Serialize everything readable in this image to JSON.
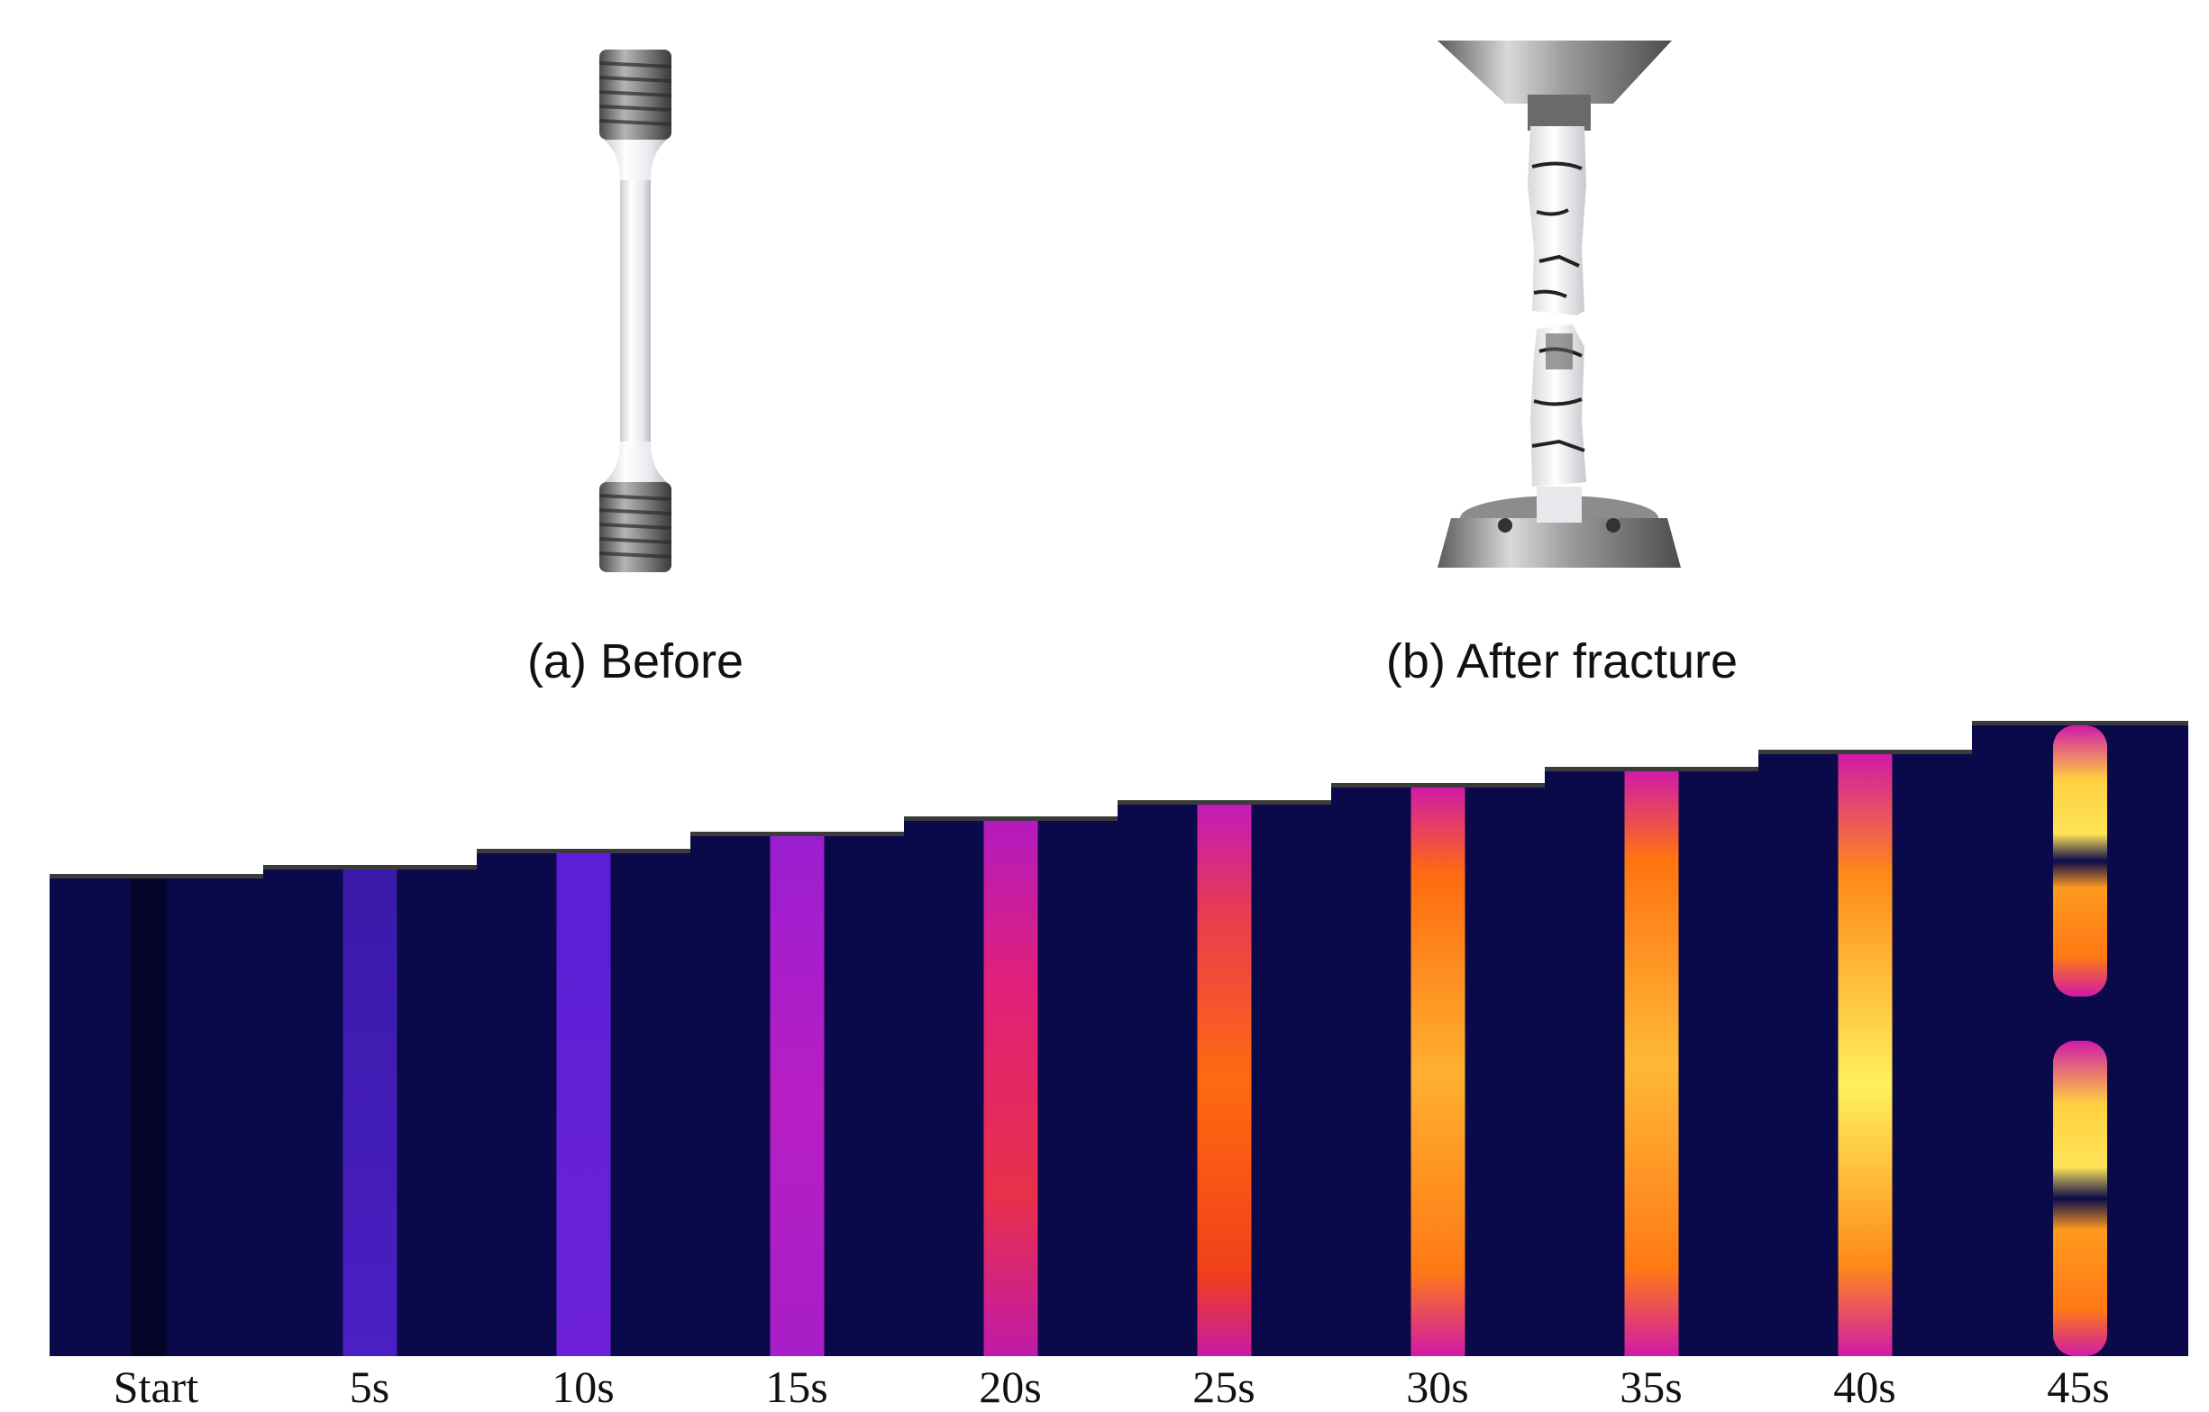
{
  "panels": {
    "before": {
      "caption": "(a) Before"
    },
    "after": {
      "caption": "(b) After fracture"
    }
  },
  "thermal_sequence": {
    "frames": [
      {
        "label": "Start"
      },
      {
        "label": "5s"
      },
      {
        "label": "10s"
      },
      {
        "label": "15s"
      },
      {
        "label": "20s"
      },
      {
        "label": "25s"
      },
      {
        "label": "30s"
      },
      {
        "label": "35s"
      },
      {
        "label": "40s"
      },
      {
        "label": "45s"
      }
    ]
  },
  "colors": {
    "background_dark": "#0a0a4a",
    "cool_violet": "#5a1fd6",
    "magenta": "#d11ab8",
    "hot_orange": "#ff6a10",
    "hottest_yellow": "#fff060"
  }
}
